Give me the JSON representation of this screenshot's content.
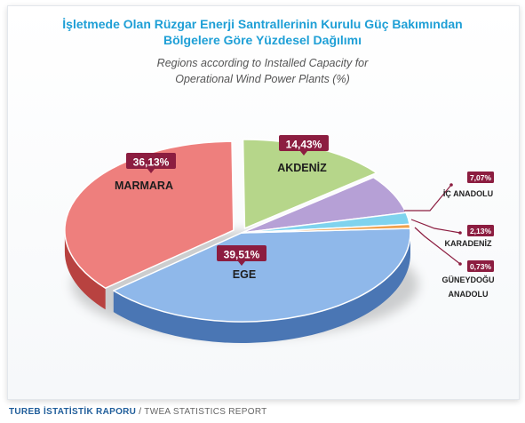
{
  "header": {
    "title_line1": "İşletmede Olan Rüzgar Enerji Santrallerinin Kurulu Güç Bakımından",
    "title_line2": "Bölgelere Göre Yüzdesel Dağılımı",
    "subtitle_line1": "Regions according to Installed Capacity for",
    "subtitle_line2": "Operational Wind Power Plants (%)"
  },
  "chart_data": {
    "type": "pie",
    "title": "İşletmede Olan Rüzgar Enerji Santrallerinin Kurulu Güç Bakımından Bölgelere Göre Yüzdesel Dağılımı",
    "subtitle": "Regions according to Installed Capacity for Operational Wind Power Plants (%)",
    "slices": [
      {
        "label": "EGE",
        "value": 39.51,
        "display": "39,51%",
        "color": "#8fb8ea",
        "dark": "#4a76b4"
      },
      {
        "label": "MARMARA",
        "value": 36.13,
        "display": "36,13%",
        "color": "#ee7f7d",
        "dark": "#b84240"
      },
      {
        "label": "AKDENİZ",
        "value": 14.43,
        "display": "14,43%",
        "color": "#b6d68a",
        "dark": "#6f9a3c"
      },
      {
        "label": "İÇ ANADOLU",
        "value": 7.07,
        "display": "7,07%",
        "color": "#b6a0d6",
        "dark": "#7557a4"
      },
      {
        "label": "KARADENİZ",
        "value": 2.13,
        "display": "2,13%",
        "color": "#7fd3ee",
        "dark": "#2f9cc2"
      },
      {
        "label": "GÜNEYDOĞU ANADOLU",
        "value": 0.73,
        "display": "0,73%",
        "color": "#f0a04a",
        "dark": "#b8651a"
      }
    ]
  },
  "footer": {
    "brand": "TUREB İSTATİSTİK RAPORU",
    "separator": "/",
    "english": "TWEA STATISTICS REPORT"
  }
}
